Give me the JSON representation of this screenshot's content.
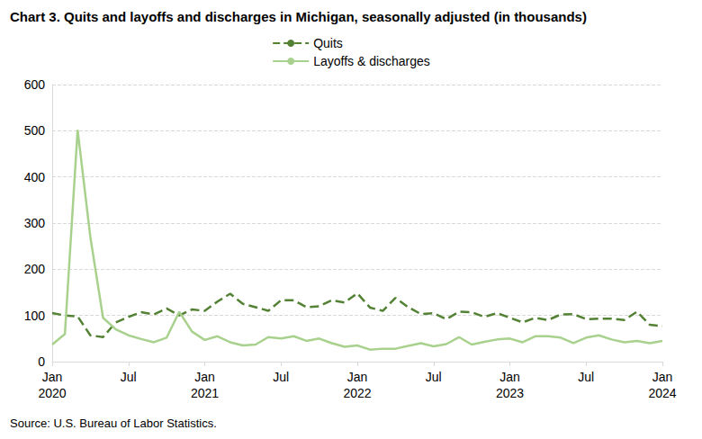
{
  "chart_data": {
    "type": "line",
    "title": "Chart 3. Quits and layoffs and discharges in Michigan, seasonally adjusted (in thousands)",
    "source": "Source: U.S. Bureau of Labor Statistics.",
    "categories": [
      "Jan\n2020",
      null,
      null,
      null,
      null,
      null,
      "Jul",
      null,
      null,
      null,
      null,
      null,
      "Jan\n2021",
      null,
      null,
      null,
      null,
      null,
      "Jul",
      null,
      null,
      null,
      null,
      null,
      "Jan\n2022",
      null,
      null,
      null,
      null,
      null,
      "Jul",
      null,
      null,
      null,
      null,
      null,
      "Jan\n2023",
      null,
      null,
      null,
      null,
      null,
      "Jul",
      null,
      null,
      null,
      null,
      null,
      "Jan\n2024"
    ],
    "series": [
      {
        "name": "Quits",
        "color": "#548235",
        "line_style": "dashed",
        "values": [
          105,
          100,
          98,
          57,
          53,
          85,
          97,
          107,
          102,
          115,
          100,
          113,
          110,
          130,
          147,
          125,
          118,
          110,
          133,
          133,
          118,
          120,
          133,
          128,
          148,
          117,
          110,
          138,
          118,
          103,
          105,
          92,
          108,
          107,
          97,
          105,
          95,
          85,
          95,
          90,
          102,
          103,
          92,
          93,
          93,
          90,
          108,
          80,
          77
        ]
      },
      {
        "name": "Layoffs & discharges",
        "color": "#a9d18e",
        "line_style": "solid",
        "values": [
          37,
          60,
          502,
          270,
          95,
          70,
          57,
          49,
          42,
          52,
          108,
          65,
          47,
          55,
          42,
          35,
          37,
          53,
          50,
          55,
          45,
          50,
          40,
          32,
          35,
          26,
          28,
          28,
          34,
          40,
          33,
          38,
          53,
          37,
          43,
          48,
          50,
          42,
          55,
          55,
          52,
          40,
          52,
          57,
          48,
          42,
          45,
          40,
          45
        ]
      }
    ],
    "ylim": [
      0,
      600
    ],
    "yticks": [
      0,
      100,
      200,
      300,
      400,
      500,
      600
    ],
    "grid": true,
    "legend": "top"
  }
}
